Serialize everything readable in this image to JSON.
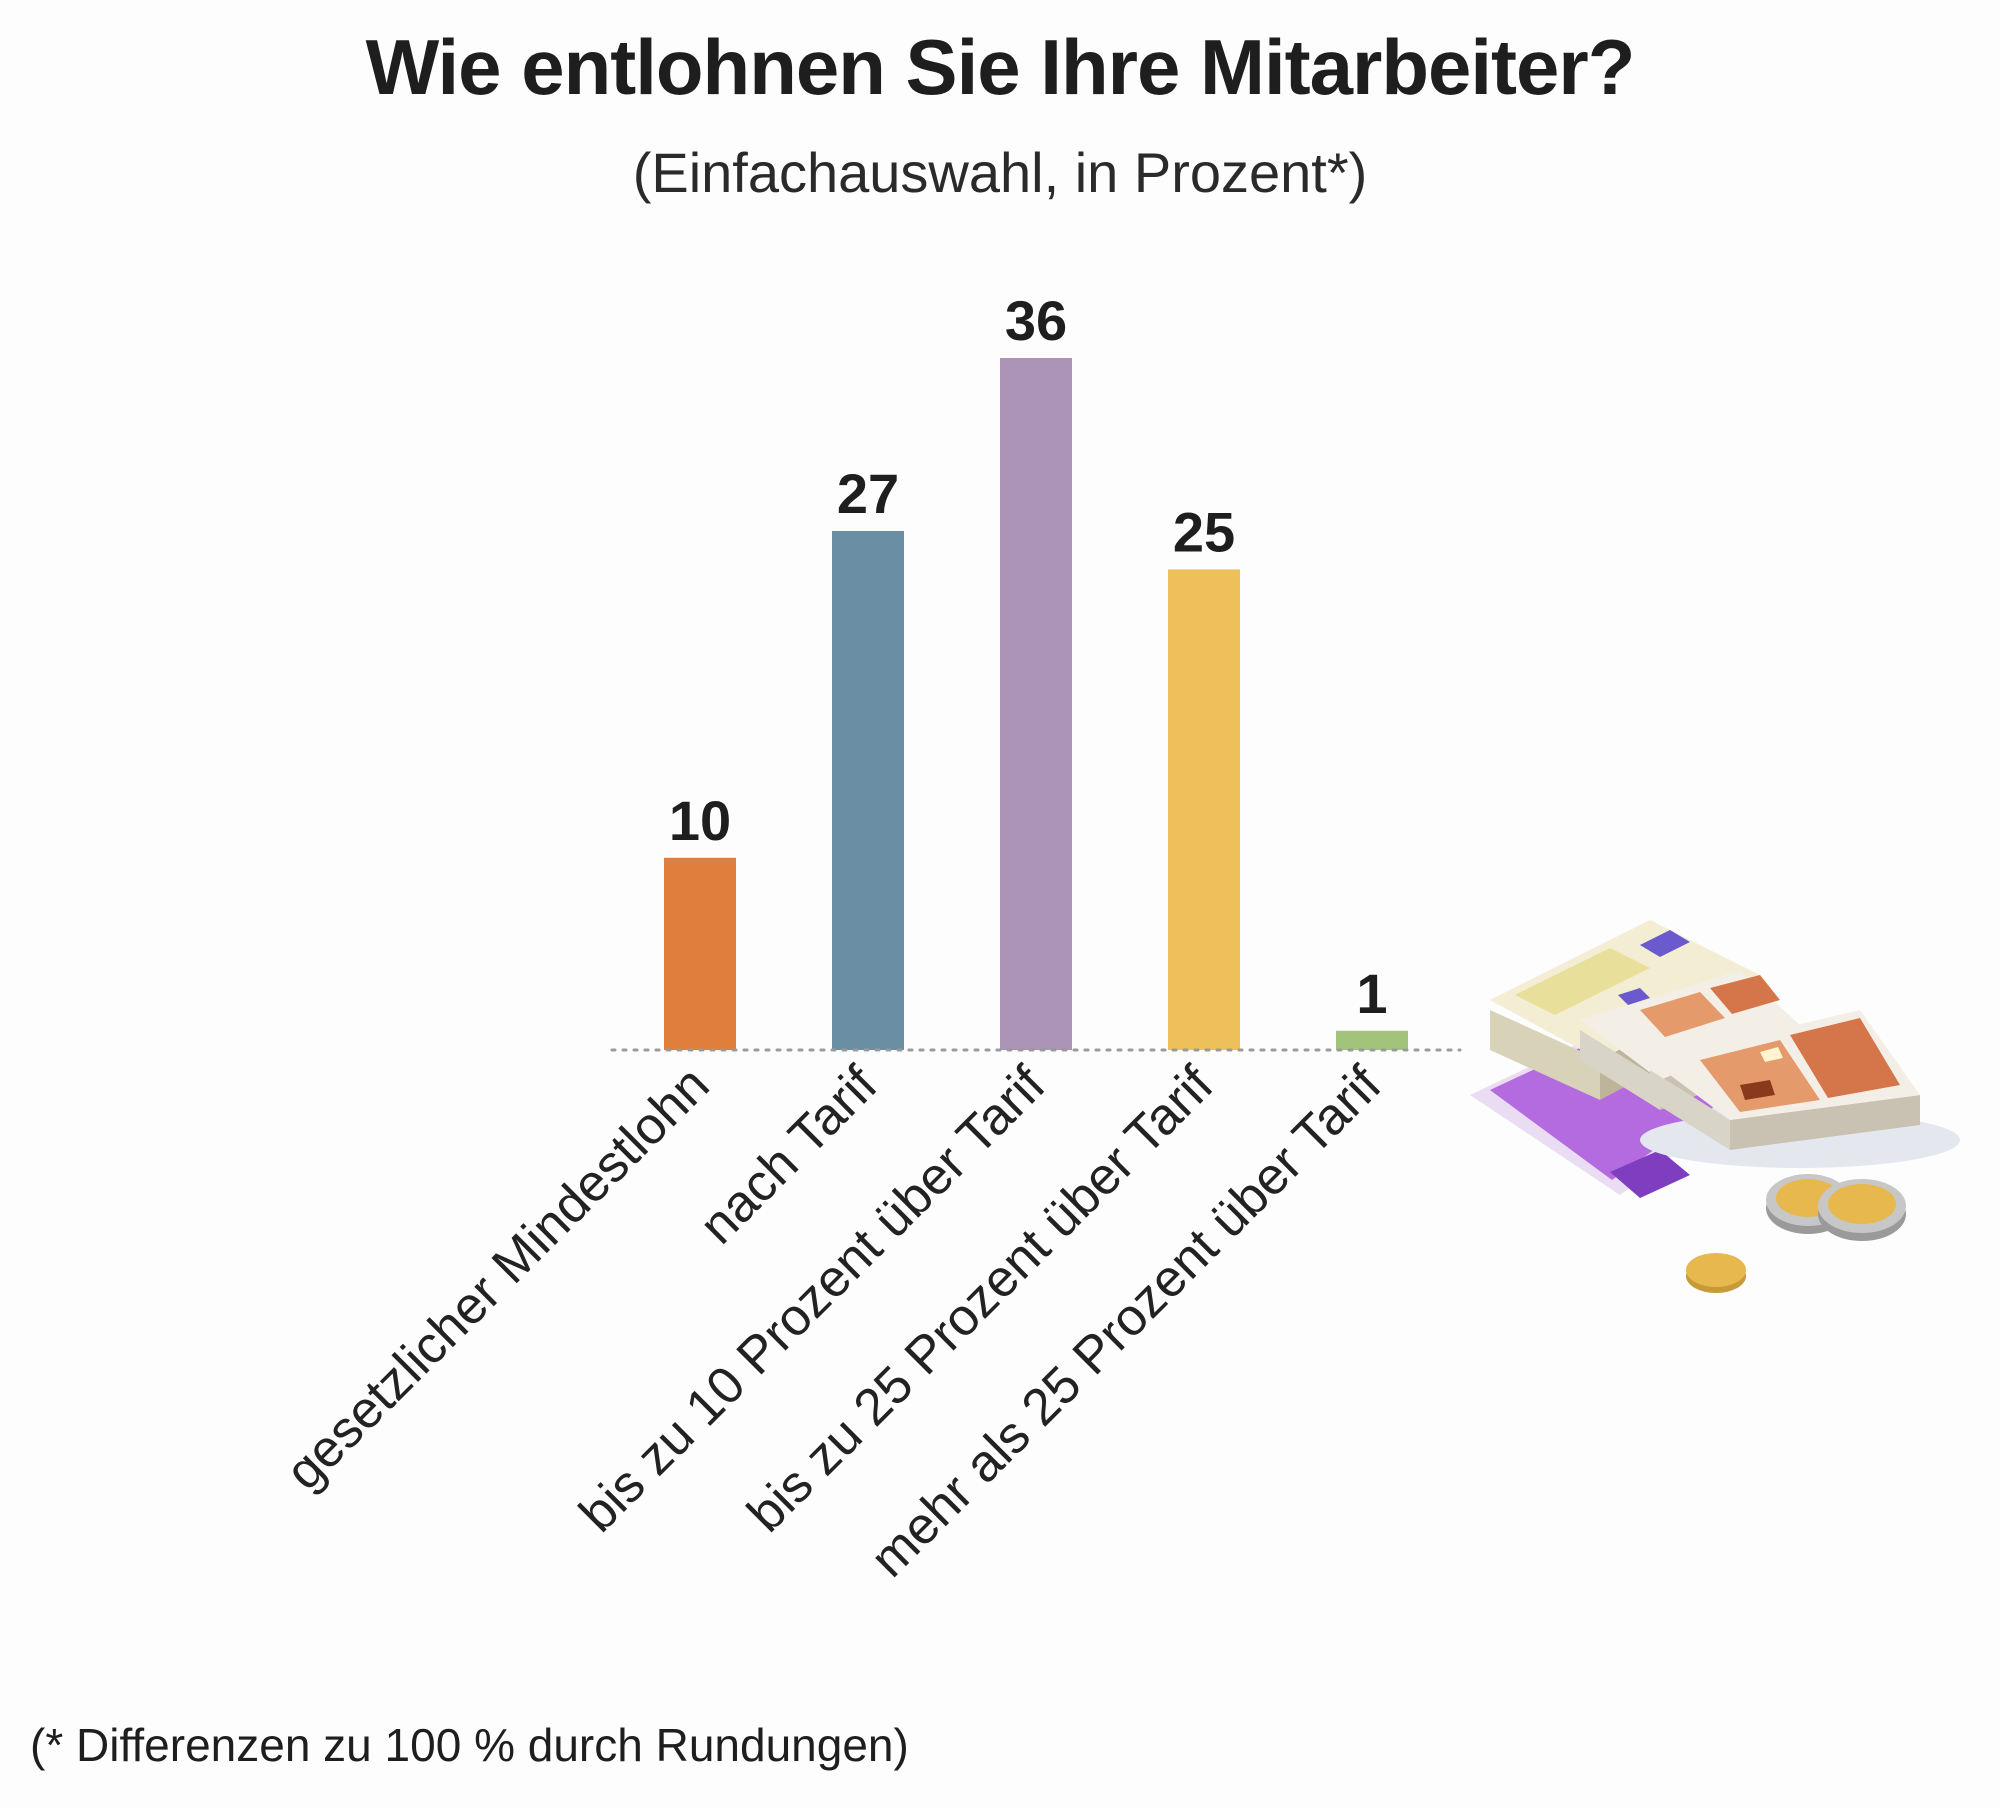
{
  "chart_data": {
    "type": "bar",
    "title": "Wie entlohnen Sie Ihre Mitarbeiter?",
    "subtitle": "(Einfachauswahl, in Prozent*)",
    "categories": [
      "gesetzlicher Mindestlohn",
      "nach Tarif",
      "bis zu 10 Prozent über Tarif",
      "bis zu 25 Prozent über Tarif",
      "mehr als 25 Prozent über Tarif"
    ],
    "values": [
      10,
      27,
      36,
      25,
      1
    ],
    "colors": [
      "#e07f3c",
      "#6a8fa5",
      "#ab94b5",
      "#eec05a",
      "#a2c47a"
    ],
    "ylim": [
      0,
      36
    ],
    "grid": false,
    "baseline_style": "dotted",
    "footnote": "(* Differenzen zu 100 % durch Rundungen)",
    "decoration": "euro-banknotes-and-coins-illustration"
  }
}
